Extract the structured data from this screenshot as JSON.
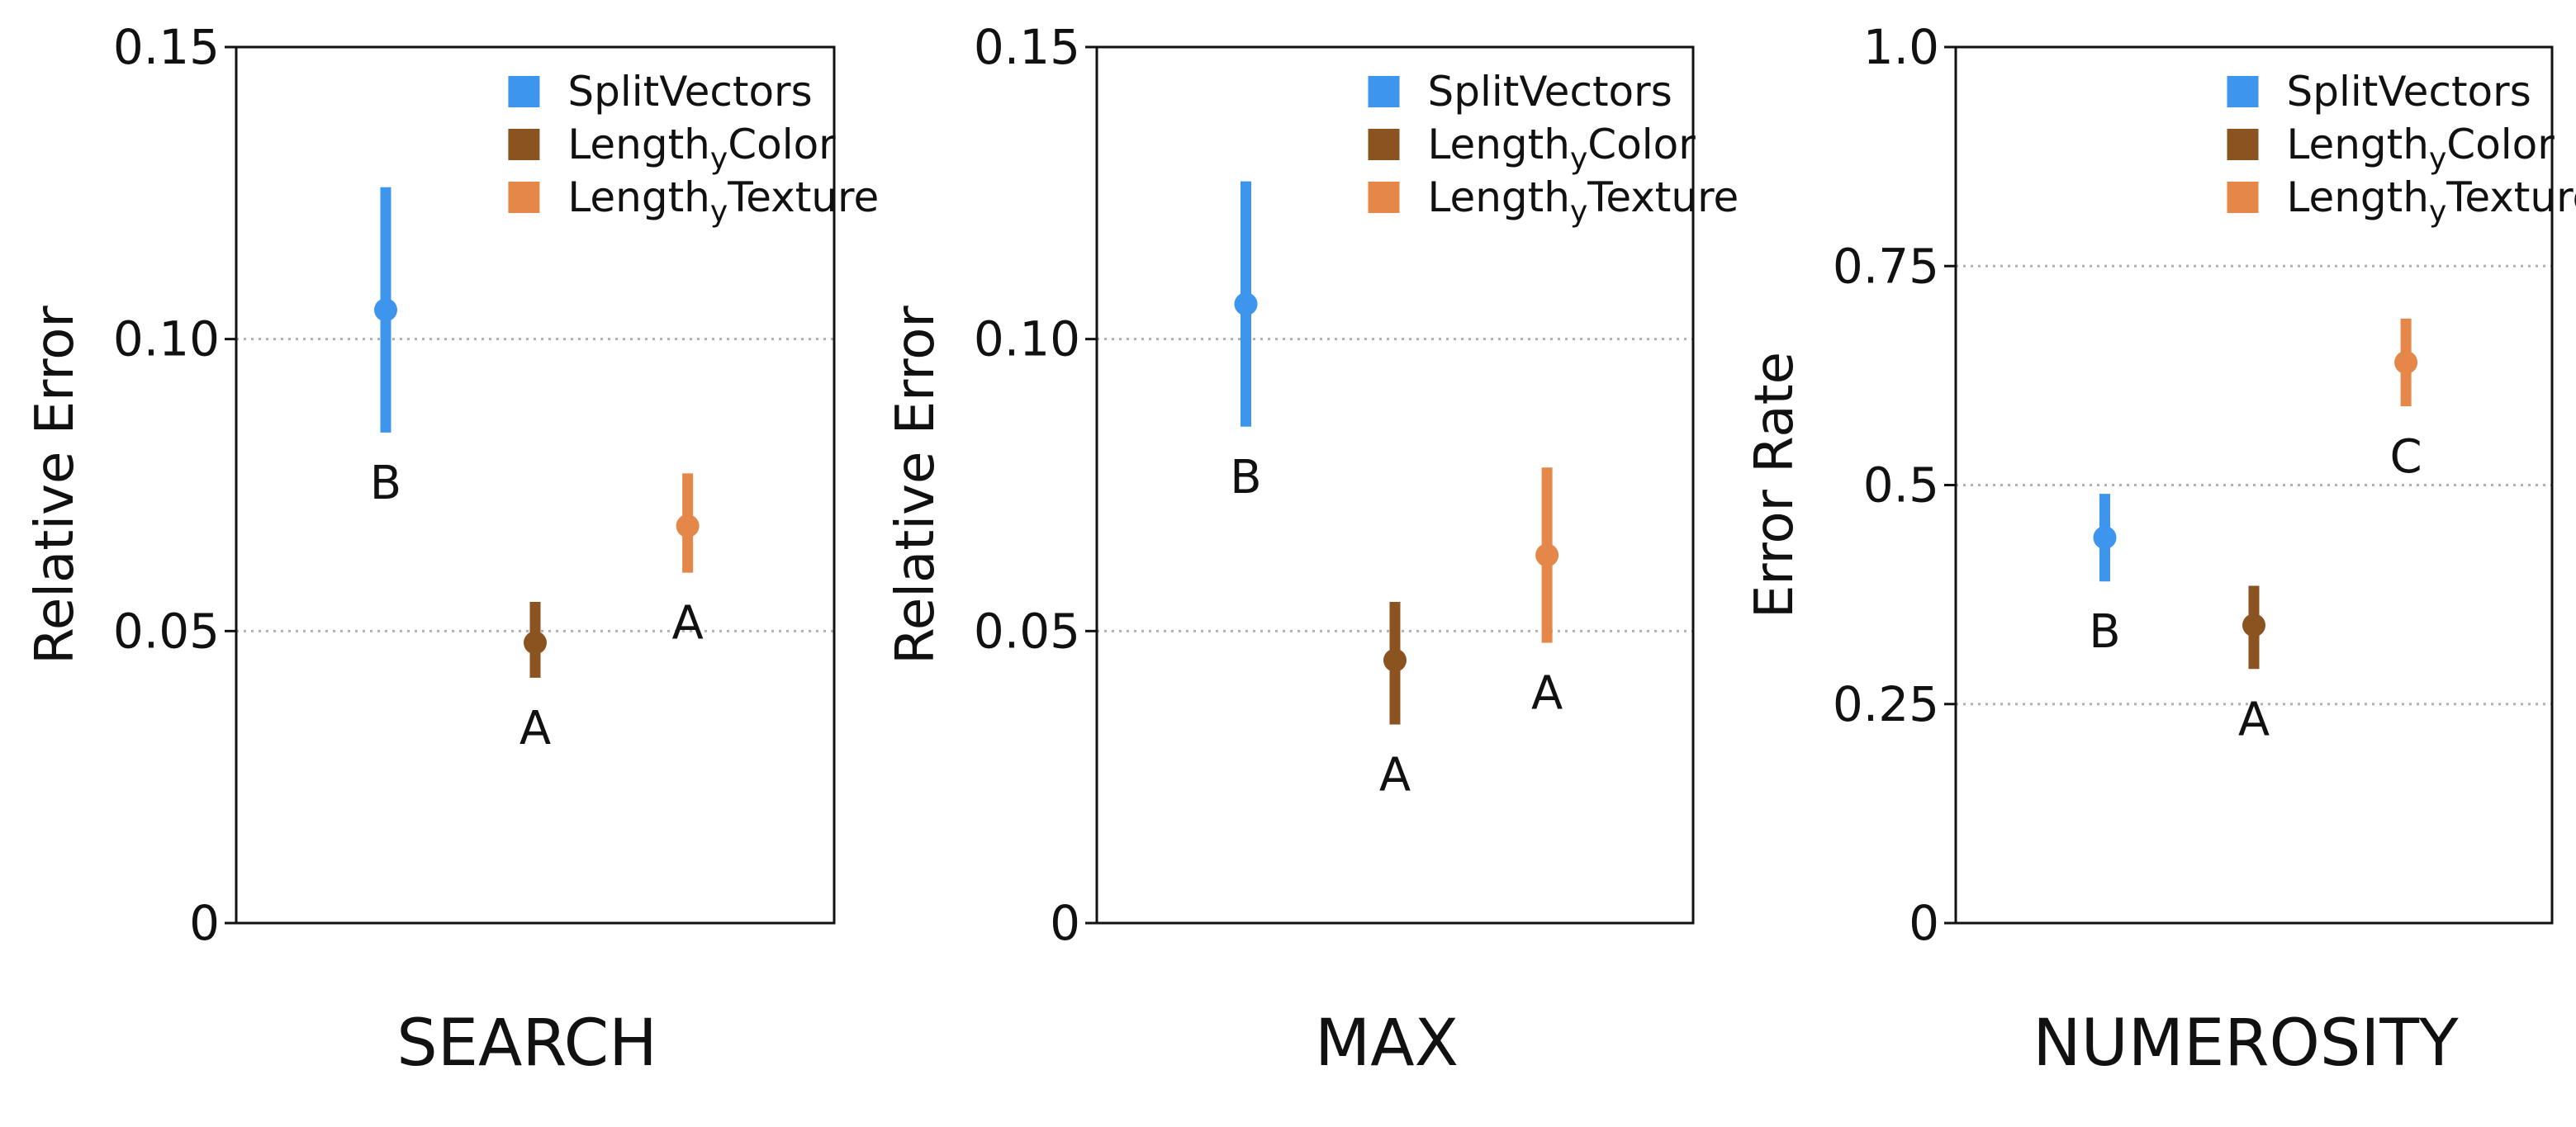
{
  "colors": {
    "SplitVectors": "#3d95ee",
    "LengthyColor": "#8a5320",
    "LengthyTexture": "#e48748",
    "grid": "#b0b0b0",
    "axis": "#111111"
  },
  "chart_data": [
    {
      "type": "scatter",
      "title": "SEARCH",
      "xlabel": "SEARCH",
      "ylabel": "Relative Error",
      "ylim": [
        0,
        0.15
      ],
      "yticks": [
        "0",
        "0.05",
        "0.10",
        "0.15"
      ],
      "ytick_values": [
        0,
        0.05,
        0.1,
        0.15
      ],
      "grid": "horizontal dotted at 0.05 and 0.10",
      "legend_position": "top-right",
      "series": [
        {
          "name": "SplitVectors",
          "name_base": "SplitVectors",
          "name_sub": "",
          "name_tail": "",
          "color_key": "SplitVectors",
          "mean": 0.105,
          "ci_low": 0.084,
          "ci_high": 0.126,
          "group": "B"
        },
        {
          "name": "LengthyColor",
          "name_base": "Length",
          "name_sub": "y",
          "name_tail": "Color",
          "color_key": "LengthyColor",
          "mean": 0.048,
          "ci_low": 0.042,
          "ci_high": 0.055,
          "group": "A"
        },
        {
          "name": "LengthyTexture",
          "name_base": "Length",
          "name_sub": "y",
          "name_tail": "Texture",
          "color_key": "LengthyTexture",
          "mean": 0.068,
          "ci_low": 0.06,
          "ci_high": 0.077,
          "group": "A"
        }
      ]
    },
    {
      "type": "scatter",
      "title": "MAX",
      "xlabel": "MAX",
      "ylabel": "Relative Error",
      "ylim": [
        0,
        0.15
      ],
      "yticks": [
        "0",
        "0.05",
        "0.10",
        "0.15"
      ],
      "ytick_values": [
        0,
        0.05,
        0.1,
        0.15
      ],
      "grid": "horizontal dotted at 0.05 and 0.10",
      "legend_position": "top-right",
      "series": [
        {
          "name": "SplitVectors",
          "name_base": "SplitVectors",
          "name_sub": "",
          "name_tail": "",
          "color_key": "SplitVectors",
          "mean": 0.106,
          "ci_low": 0.085,
          "ci_high": 0.127,
          "group": "B"
        },
        {
          "name": "LengthyColor",
          "name_base": "Length",
          "name_sub": "y",
          "name_tail": "Color",
          "color_key": "LengthyColor",
          "mean": 0.045,
          "ci_low": 0.034,
          "ci_high": 0.055,
          "group": "A"
        },
        {
          "name": "LengthyTexture",
          "name_base": "Length",
          "name_sub": "y",
          "name_tail": "Texture",
          "color_key": "LengthyTexture",
          "mean": 0.063,
          "ci_low": 0.048,
          "ci_high": 0.078,
          "group": "A"
        }
      ]
    },
    {
      "type": "scatter",
      "title": "NUMEROSITY",
      "xlabel": "NUMEROSITY",
      "ylabel": "Error Rate",
      "ylim": [
        0,
        1.0
      ],
      "yticks": [
        "0",
        "0.25",
        "0.5",
        "0.75",
        "1.0"
      ],
      "ytick_values": [
        0,
        0.25,
        0.5,
        0.75,
        1.0
      ],
      "grid": "horizontal dotted at 0.25, 0.5 and 0.75",
      "legend_position": "top-right",
      "series": [
        {
          "name": "SplitVectors",
          "name_base": "SplitVectors",
          "name_sub": "",
          "name_tail": "",
          "color_key": "SplitVectors",
          "mean": 0.44,
          "ci_low": 0.39,
          "ci_high": 0.49,
          "group": "B"
        },
        {
          "name": "LengthyColor",
          "name_base": "Length",
          "name_sub": "y",
          "name_tail": "Color",
          "color_key": "LengthyColor",
          "mean": 0.34,
          "ci_low": 0.29,
          "ci_high": 0.385,
          "group": "A"
        },
        {
          "name": "LengthyTexture",
          "name_base": "Length",
          "name_sub": "y",
          "name_tail": "Texture",
          "color_key": "LengthyTexture",
          "mean": 0.64,
          "ci_low": 0.59,
          "ci_high": 0.69,
          "group": "C"
        }
      ]
    }
  ]
}
